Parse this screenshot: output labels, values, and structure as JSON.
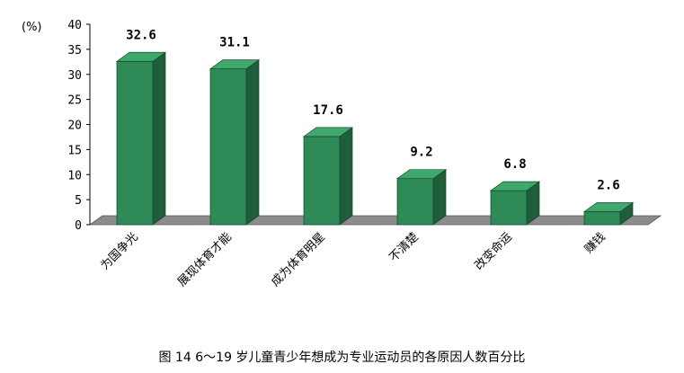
{
  "chart_data": {
    "type": "bar",
    "style": "3d",
    "unit": "(%)",
    "categories": [
      "为国争光",
      "展现体育才能",
      "成为体育明星",
      "不清楚",
      "改变命运",
      "赚钱"
    ],
    "values": [
      32.6,
      31.1,
      17.6,
      9.2,
      6.8,
      2.6
    ],
    "value_labels": [
      "32.6",
      "31.1",
      "17.6",
      "9.2",
      "6.8",
      "2.6"
    ],
    "yticks": [
      "0",
      "5",
      "10",
      "15",
      "20",
      "25",
      "30",
      "35",
      "40"
    ],
    "ylim": [
      0,
      40
    ],
    "grid": false,
    "legend": "none",
    "colors": {
      "bar_front": "#2e8b57",
      "bar_side": "#1f5e3a",
      "bar_top": "#3fa86c",
      "floor": "#8c8c8c"
    }
  },
  "caption": "图 14   6～19 岁儿童青少年想成为专业运动员的各原因人数百分比"
}
